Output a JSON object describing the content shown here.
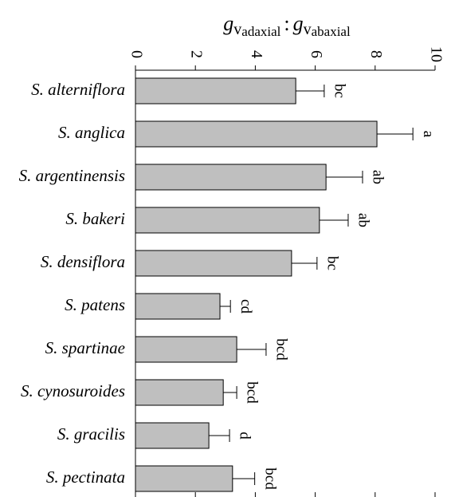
{
  "chart_data": {
    "type": "bar",
    "orientation": "horizontal",
    "x_label": [
      "g",
      "v",
      "adaxial",
      ":",
      "g",
      "v",
      "abaxial"
    ],
    "categories": [
      "S. alterniflora",
      "S. anglica",
      "S. argentinensis",
      "S. bakeri",
      "S. densiflora",
      "S. patens",
      "S. spartinae",
      "S. cynosuroides",
      "S. gracilis",
      "S. pectinata"
    ],
    "values": [
      5.35,
      8.06,
      6.36,
      6.14,
      5.21,
      2.82,
      3.38,
      2.93,
      2.45,
      3.24
    ],
    "errors": [
      0.95,
      1.2,
      1.22,
      0.96,
      0.85,
      0.35,
      0.98,
      0.45,
      0.69,
      0.74
    ],
    "annotations": [
      "bc",
      "a",
      "ab",
      "ab",
      "bc",
      "cd",
      "bcd",
      "bcd",
      "d",
      "bcd"
    ],
    "color": "#bfbfbf",
    "xlim": [
      0,
      10
    ],
    "xticks": [
      0,
      2,
      4,
      6,
      8,
      10
    ],
    "grid": false
  }
}
